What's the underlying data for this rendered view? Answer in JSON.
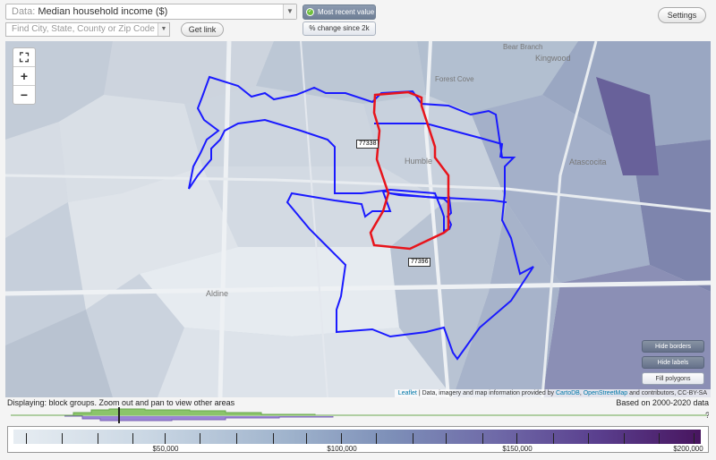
{
  "toolbar": {
    "data_prefix": "Data:",
    "data_value": "Median household income ($)",
    "search_placeholder": "Find City, State, County or Zip Code",
    "get_link": "Get link",
    "most_recent": "Most recent value",
    "pct_change": "% change since 2k",
    "settings": "Settings"
  },
  "map": {
    "places": {
      "kingwood": "Kingwood",
      "bear_branch": "Bear Branch",
      "forest_cove": "Forest Cove",
      "humble": "Humble",
      "atascocita": "Atascocita",
      "aldine": "Aldine"
    },
    "zip_labels": {
      "a": "77338",
      "b": "77396"
    },
    "buttons": {
      "hide_borders": "Hide borders",
      "hide_labels": "Hide labels",
      "fill_polygons": "Fill polygons"
    },
    "zoom": {
      "in": "+",
      "out": "−"
    },
    "attribution": {
      "leaflet": "Leaflet",
      "text": " | Data, imagery and map information provided by ",
      "cartodb": "CartoDB",
      "sep": ", ",
      "osm": "OpenStreetMap",
      "rest": " and contributors, CC-BY-SA"
    },
    "colors": {
      "red_border": "#e8141b",
      "blue_border": "#1a1aff"
    }
  },
  "status": {
    "displaying": "Displaying: block groups. Zoom out and pan to view other areas",
    "based_on": "Based on 2000-2020 data"
  },
  "legend": {
    "labels": [
      "$50,000",
      "$100,000",
      "$150,000",
      "$200,000"
    ],
    "end_marker": "?"
  }
}
